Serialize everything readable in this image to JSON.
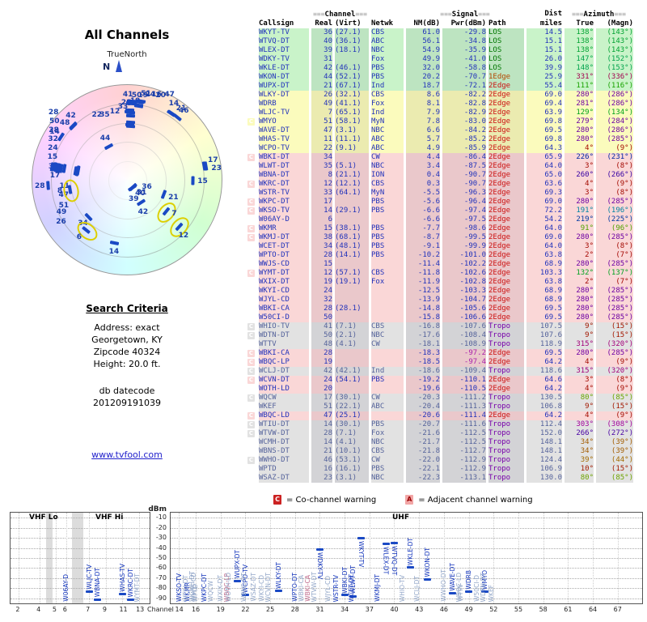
{
  "radar": {
    "title": "All Channels",
    "compass_label": "TrueNorth",
    "north_label": "N",
    "highlights": [
      "WBNA-DT",
      "W06AY-D",
      "WLJC-TV",
      "WYMT-DT"
    ]
  },
  "search": {
    "heading": "Search Criteria",
    "lines": [
      "Address: exact",
      "Georgetown, KY",
      "Zipcode 40324",
      "Height: 20.0 ft."
    ],
    "db_label": "db datecode",
    "db_value": "201209191039"
  },
  "link": "www.tvfool.com",
  "legend": {
    "co_symbol": "C",
    "co_label": "= Co-channel warning",
    "adj_symbol": "A",
    "adj_label": "= Adjacent channel warning"
  },
  "table": {
    "group_headers": {
      "channel": "Channel",
      "signal": "Signal",
      "dist": "Dist",
      "azimuth": "Azimuth"
    },
    "col_headers": {
      "callsign": "Callsign",
      "real": "Real",
      "virt": "(Virt)",
      "netwk": "Netwk",
      "nm": "NM(dB)",
      "pwr": "Pwr(dBm)",
      "path": "Path",
      "miles": "miles",
      "true": "True",
      "magn": "(Magn)"
    },
    "tier_colors": {
      "green": "#c9f3c9",
      "yellow": "#fbfbbd",
      "pink": "#fad7d7",
      "gray": "#e2e2e2"
    },
    "path_colors": {
      "LOS": "#007700",
      "1Edge": "#b34700",
      "2Edge": "#cc1111",
      "Tropo": "#7700aa"
    },
    "rows": [
      {
        "f": "",
        "cs": "WKYT-TV",
        "re": "36",
        "vi": "(27.1)",
        "ne": "CBS",
        "nm": "61.0",
        "pw": "-29.8",
        "pa": "LOS",
        "mi": "14.5",
        "at": "138°",
        "am": "(143°)",
        "ti": "green"
      },
      {
        "f": "",
        "cs": "WTVQ-DT",
        "re": "40",
        "vi": "(36.1)",
        "ne": "ABC",
        "nm": "56.1",
        "pw": "-34.8",
        "pa": "LOS",
        "mi": "15.1",
        "at": "138°",
        "am": "(143°)",
        "ti": "green"
      },
      {
        "f": "",
        "cs": "WLEX-DT",
        "re": "39",
        "vi": "(18.1)",
        "ne": "NBC",
        "nm": "54.9",
        "pw": "-35.9",
        "pa": "LOS",
        "mi": "15.1",
        "at": "138°",
        "am": "(143°)",
        "ti": "green"
      },
      {
        "f": "",
        "cs": "WDKY-TV",
        "re": "31",
        "vi": "",
        "ne": "Fox",
        "nm": "49.9",
        "pw": "-41.0",
        "pa": "LOS",
        "mi": "26.0",
        "at": "147°",
        "am": "(152°)",
        "ti": "green"
      },
      {
        "f": "",
        "cs": "WKLE-DT",
        "re": "42",
        "vi": "(46.1)",
        "ne": "PBS",
        "nm": "32.0",
        "pw": "-58.8",
        "pa": "LOS",
        "mi": "39.9",
        "at": "148°",
        "am": "(153°)",
        "ti": "green"
      },
      {
        "f": "",
        "cs": "WKON-DT",
        "re": "44",
        "vi": "(52.1)",
        "ne": "PBS",
        "nm": "20.2",
        "pw": "-70.7",
        "pa": "1Edge",
        "mi": "25.9",
        "at": "331°",
        "am": "(336°)",
        "ti": "green"
      },
      {
        "f": "",
        "cs": "WUPX-DT",
        "re": "21",
        "vi": "(67.1)",
        "ne": "Ind",
        "nm": "18.7",
        "pw": "-72.1",
        "pa": "2Edge",
        "mi": "55.4",
        "at": "111°",
        "am": "(116°)",
        "ti": "green"
      },
      {
        "f": "",
        "cs": "WLKY-DT",
        "re": "26",
        "vi": "(32.1)",
        "ne": "CBS",
        "nm": "8.6",
        "pw": "-82.2",
        "pa": "2Edge",
        "mi": "69.0",
        "at": "280°",
        "am": "(286°)",
        "ti": "yellow"
      },
      {
        "f": "",
        "cs": "WDRB",
        "re": "49",
        "vi": "(41.1)",
        "ne": "Fox",
        "nm": "8.1",
        "pw": "-82.8",
        "pa": "2Edge",
        "mi": "69.4",
        "at": "281°",
        "am": "(286°)",
        "ti": "yellow"
      },
      {
        "f": "",
        "cs": "WLJC-TV",
        "re": "7",
        "vi": "(65.1)",
        "ne": "Ind",
        "nm": "7.9",
        "pw": "-82.9",
        "pa": "2Edge",
        "mi": "63.9",
        "at": "129°",
        "am": "(134°)",
        "ti": "yellow"
      },
      {
        "f": "C",
        "cs": "WMYO",
        "re": "51",
        "vi": "(58.1)",
        "ne": "MyN",
        "nm": "7.8",
        "pw": "-83.0",
        "pa": "2Edge",
        "mi": "69.8",
        "at": "279°",
        "am": "(284°)",
        "ti": "yellow"
      },
      {
        "f": "",
        "cs": "WAVE-DT",
        "re": "47",
        "vi": "(3.1)",
        "ne": "NBC",
        "nm": "6.6",
        "pw": "-84.2",
        "pa": "2Edge",
        "mi": "69.5",
        "at": "280°",
        "am": "(286°)",
        "ti": "yellow"
      },
      {
        "f": "",
        "cs": "WHAS-TV",
        "re": "11",
        "vi": "(11.1)",
        "ne": "ABC",
        "nm": "5.7",
        "pw": "-85.2",
        "pa": "2Edge",
        "mi": "69.8",
        "at": "280°",
        "am": "(285°)",
        "ti": "yellow"
      },
      {
        "f": "",
        "cs": "WCPO-TV",
        "re": "22",
        "vi": "(9.1)",
        "ne": "ABC",
        "nm": "4.9",
        "pw": "-85.9",
        "pa": "2Edge",
        "mi": "64.3",
        "at": "4°",
        "am": "(9°)",
        "ti": "yellow"
      },
      {
        "f": "C",
        "cs": "WBKI-DT",
        "re": "34",
        "vi": "",
        "ne": "CW",
        "nm": "4.4",
        "pw": "-86.4",
        "pa": "2Edge",
        "mi": "65.9",
        "at": "226°",
        "am": "(231°)",
        "ti": "pink"
      },
      {
        "f": "",
        "cs": "WLWT-DT",
        "re": "35",
        "vi": "(5.1)",
        "ne": "NBC",
        "nm": "3.4",
        "pw": "-87.5",
        "pa": "2Edge",
        "mi": "64.0",
        "at": "3°",
        "am": "(8°)",
        "ti": "pink"
      },
      {
        "f": "",
        "cs": "WBNA-DT",
        "re": "8",
        "vi": "(21.1)",
        "ne": "ION",
        "nm": "0.4",
        "pw": "-90.7",
        "pa": "2Edge",
        "mi": "65.0",
        "at": "260°",
        "am": "(266°)",
        "ti": "pink"
      },
      {
        "f": "C",
        "cs": "WKRC-DT",
        "re": "12",
        "vi": "(12.1)",
        "ne": "CBS",
        "nm": "0.3",
        "pw": "-90.7",
        "pa": "2Edge",
        "mi": "63.6",
        "at": "4°",
        "am": "(9°)",
        "ti": "pink"
      },
      {
        "f": "",
        "cs": "WSTR-TV",
        "re": "33",
        "vi": "(64.1)",
        "ne": "MyN",
        "nm": "-5.5",
        "pw": "-96.3",
        "pa": "2Edge",
        "mi": "69.3",
        "at": "3°",
        "am": "(8°)",
        "ti": "pink"
      },
      {
        "f": "C",
        "cs": "WKPC-DT",
        "re": "17",
        "vi": "",
        "ne": "PBS",
        "nm": "-5.6",
        "pw": "-96.4",
        "pa": "2Edge",
        "mi": "69.0",
        "at": "280°",
        "am": "(285°)",
        "ti": "pink"
      },
      {
        "f": "C",
        "cs": "WKSO-TV",
        "re": "14",
        "vi": "(29.1)",
        "ne": "PBS",
        "nm": "-6.6",
        "pw": "-97.4",
        "pa": "2Edge",
        "mi": "72.2",
        "at": "191°",
        "am": "(196°)",
        "ti": "pink"
      },
      {
        "f": "",
        "cs": "W06AY-D",
        "re": "6",
        "vi": "",
        "ne": "",
        "nm": "-6.6",
        "pw": "-97.5",
        "pa": "2Edge",
        "mi": "54.2",
        "at": "219°",
        "am": "(225°)",
        "ti": "pink"
      },
      {
        "f": "C",
        "cs": "WKMR",
        "re": "15",
        "vi": "(38.1)",
        "ne": "PBS",
        "nm": "-7.7",
        "pw": "-98.6",
        "pa": "2Edge",
        "mi": "64.0",
        "at": "91°",
        "am": "(96°)",
        "ti": "pink"
      },
      {
        "f": "C",
        "cs": "WKMJ-DT",
        "re": "38",
        "vi": "(68.1)",
        "ne": "PBS",
        "nm": "-8.7",
        "pw": "-99.5",
        "pa": "2Edge",
        "mi": "69.0",
        "at": "280°",
        "am": "(285°)",
        "ti": "pink"
      },
      {
        "f": "",
        "cs": "WCET-DT",
        "re": "34",
        "vi": "(48.1)",
        "ne": "PBS",
        "nm": "-9.1",
        "pw": "-99.9",
        "pa": "2Edge",
        "mi": "64.0",
        "at": "3°",
        "am": "(8°)",
        "ti": "pink"
      },
      {
        "f": "",
        "cs": "WPTO-DT",
        "re": "28",
        "vi": "(14.1)",
        "ne": "PBS",
        "nm": "-10.2",
        "pw": "-101.0",
        "pa": "2Edge",
        "mi": "63.8",
        "at": "2°",
        "am": "(7°)",
        "ti": "pink"
      },
      {
        "f": "",
        "cs": "WWJS-CD",
        "re": "15",
        "vi": "",
        "ne": "",
        "nm": "-11.4",
        "pw": "-102.2",
        "pa": "2Edge",
        "mi": "68.9",
        "at": "280°",
        "am": "(285°)",
        "ti": "pink"
      },
      {
        "f": "C",
        "cs": "WYMT-DT",
        "re": "12",
        "vi": "(57.1)",
        "ne": "CBS",
        "nm": "-11.8",
        "pw": "-102.6",
        "pa": "2Edge",
        "mi": "103.3",
        "at": "132°",
        "am": "(137°)",
        "ti": "pink"
      },
      {
        "f": "",
        "cs": "WXIX-DT",
        "re": "19",
        "vi": "(19.1)",
        "ne": "Fox",
        "nm": "-11.9",
        "pw": "-102.8",
        "pa": "2Edge",
        "mi": "63.8",
        "at": "2°",
        "am": "(7°)",
        "ti": "pink"
      },
      {
        "f": "",
        "cs": "WKYI-CD",
        "re": "24",
        "vi": "",
        "ne": "",
        "nm": "-12.5",
        "pw": "-103.3",
        "pa": "2Edge",
        "mi": "68.9",
        "at": "280°",
        "am": "(285°)",
        "ti": "pink"
      },
      {
        "f": "",
        "cs": "WJYL-CD",
        "re": "32",
        "vi": "",
        "ne": "",
        "nm": "-13.9",
        "pw": "-104.7",
        "pa": "2Edge",
        "mi": "68.9",
        "at": "280°",
        "am": "(285°)",
        "ti": "pink"
      },
      {
        "f": "",
        "cs": "WBKI-CA",
        "re": "28",
        "vi": "(28.1)",
        "ne": "",
        "nm": "-14.8",
        "pw": "-105.6",
        "pa": "2Edge",
        "mi": "69.5",
        "at": "280°",
        "am": "(285°)",
        "ti": "pink"
      },
      {
        "f": "",
        "cs": "W50CI-D",
        "re": "50",
        "vi": "",
        "ne": "",
        "nm": "-15.8",
        "pw": "-106.6",
        "pa": "2Edge",
        "mi": "69.5",
        "at": "280°",
        "am": "(285°)",
        "ti": "pink"
      },
      {
        "f": "C",
        "cs": "WHIO-TV",
        "re": "41",
        "vi": "(7.1)",
        "ne": "CBS",
        "nm": "-16.8",
        "pw": "-107.6",
        "pa": "Tropo",
        "mi": "107.5",
        "at": "9°",
        "am": "(15°)",
        "ti": "gray"
      },
      {
        "f": "C",
        "cs": "WDTN-DT",
        "re": "50",
        "vi": "(2.1)",
        "ne": "NBC",
        "nm": "-17.6",
        "pw": "-108.4",
        "pa": "Tropo",
        "mi": "107.6",
        "at": "9°",
        "am": "(15°)",
        "ti": "gray"
      },
      {
        "f": "",
        "cs": "WTTV",
        "re": "48",
        "vi": "(4.1)",
        "ne": "CW",
        "nm": "-18.1",
        "pw": "-108.9",
        "pa": "Tropo",
        "mi": "118.9",
        "at": "315°",
        "am": "(320°)",
        "ti": "gray"
      },
      {
        "f": "C",
        "cs": "WBKI-CA",
        "re": "28",
        "vi": "",
        "ne": "",
        "nm": "-18.3",
        "pw": "-97.2",
        "pa": "2Edge",
        "mi": "69.5",
        "at": "280°",
        "am": "(285°)",
        "ti": "pink",
        "an": true
      },
      {
        "f": "C",
        "cs": "WBQC-LP",
        "re": "19",
        "vi": "",
        "ne": "",
        "nm": "-18.5",
        "pw": "-97.4",
        "pa": "2Edge",
        "mi": "64.2",
        "at": "4°",
        "am": "(9°)",
        "ti": "pink",
        "an": true
      },
      {
        "f": "C",
        "cs": "WCLJ-DT",
        "re": "42",
        "vi": "(42.1)",
        "ne": "Ind",
        "nm": "-18.6",
        "pw": "-109.4",
        "pa": "Tropo",
        "mi": "118.6",
        "at": "315°",
        "am": "(320°)",
        "ti": "gray"
      },
      {
        "f": "C",
        "cs": "WCVN-DT",
        "re": "24",
        "vi": "(54.1)",
        "ne": "PBS",
        "nm": "-19.2",
        "pw": "-110.1",
        "pa": "2Edge",
        "mi": "64.6",
        "at": "3°",
        "am": "(8°)",
        "ti": "pink"
      },
      {
        "f": "",
        "cs": "WOTH-LD",
        "re": "20",
        "vi": "",
        "ne": "",
        "nm": "-19.6",
        "pw": "-110.5",
        "pa": "2Edge",
        "mi": "64.2",
        "at": "4°",
        "am": "(9°)",
        "ti": "pink"
      },
      {
        "f": "C",
        "cs": "WQCW",
        "re": "17",
        "vi": "(30.1)",
        "ne": "CW",
        "nm": "-20.3",
        "pw": "-111.2",
        "pa": "Tropo",
        "mi": "130.5",
        "at": "80°",
        "am": "(85°)",
        "ti": "gray"
      },
      {
        "f": "",
        "cs": "WKEF",
        "re": "51",
        "vi": "(22.1)",
        "ne": "ABC",
        "nm": "-20.4",
        "pw": "-111.3",
        "pa": "Tropo",
        "mi": "106.8",
        "at": "9°",
        "am": "(15°)",
        "ti": "gray"
      },
      {
        "f": "C",
        "cs": "WBQC-LD",
        "re": "47",
        "vi": "(25.1)",
        "ne": "",
        "nm": "-20.6",
        "pw": "-111.4",
        "pa": "2Edge",
        "mi": "64.2",
        "at": "4°",
        "am": "(9°)",
        "ti": "pink"
      },
      {
        "f": "C",
        "cs": "WTIU-DT",
        "re": "14",
        "vi": "(30.1)",
        "ne": "PBS",
        "nm": "-20.7",
        "pw": "-111.6",
        "pa": "Tropo",
        "mi": "112.4",
        "at": "303°",
        "am": "(308°)",
        "ti": "gray"
      },
      {
        "f": "C",
        "cs": "WTVW-DT",
        "re": "28",
        "vi": "(7.1)",
        "ne": "Fox",
        "nm": "-21.6",
        "pw": "-112.5",
        "pa": "Tropo",
        "mi": "152.0",
        "at": "266°",
        "am": "(272°)",
        "ti": "gray"
      },
      {
        "f": "",
        "cs": "WCMH-DT",
        "re": "14",
        "vi": "(4.1)",
        "ne": "NBC",
        "nm": "-21.7",
        "pw": "-112.5",
        "pa": "Tropo",
        "mi": "148.1",
        "at": "34°",
        "am": "(39°)",
        "ti": "gray"
      },
      {
        "f": "",
        "cs": "WBNS-DT",
        "re": "21",
        "vi": "(10.1)",
        "ne": "CBS",
        "nm": "-21.8",
        "pw": "-112.7",
        "pa": "Tropo",
        "mi": "148.1",
        "at": "34°",
        "am": "(39°)",
        "ti": "gray"
      },
      {
        "f": "C",
        "cs": "WWHO-DT",
        "re": "46",
        "vi": "(53.1)",
        "ne": "CW",
        "nm": "-22.0",
        "pw": "-112.9",
        "pa": "Tropo",
        "mi": "124.4",
        "at": "39°",
        "am": "(44°)",
        "ti": "gray"
      },
      {
        "f": "",
        "cs": "WPTD",
        "re": "16",
        "vi": "(16.1)",
        "ne": "PBS",
        "nm": "-22.1",
        "pw": "-112.9",
        "pa": "Tropo",
        "mi": "106.9",
        "at": "10°",
        "am": "(15°)",
        "ti": "gray"
      },
      {
        "f": "",
        "cs": "WSAZ-DT",
        "re": "23",
        "vi": "(3.1)",
        "ne": "NBC",
        "nm": "-22.3",
        "pw": "-113.1",
        "pa": "Tropo",
        "mi": "130.0",
        "at": "80°",
        "am": "(85°)",
        "ti": "gray"
      }
    ]
  },
  "spectrum": {
    "ylabel": "dBm",
    "xlabel": "Channel",
    "yticks": [
      "-10",
      "-20",
      "-30",
      "-40",
      "-50",
      "-60",
      "-70",
      "-80",
      "-90"
    ],
    "bands": {
      "vhf_lo": "VHF Lo",
      "vhf_hi": "VHF Hi",
      "uhf": "UHF"
    },
    "left_ticks": [
      "2",
      "4",
      "5",
      "6",
      "7",
      "9",
      "11",
      "13"
    ],
    "right_ticks": [
      "14",
      "16",
      "19",
      "22",
      "25",
      "28",
      "31",
      "34",
      "37",
      "40",
      "43",
      "46",
      "49",
      "52",
      "55",
      "58",
      "61",
      "64",
      "67"
    ]
  }
}
